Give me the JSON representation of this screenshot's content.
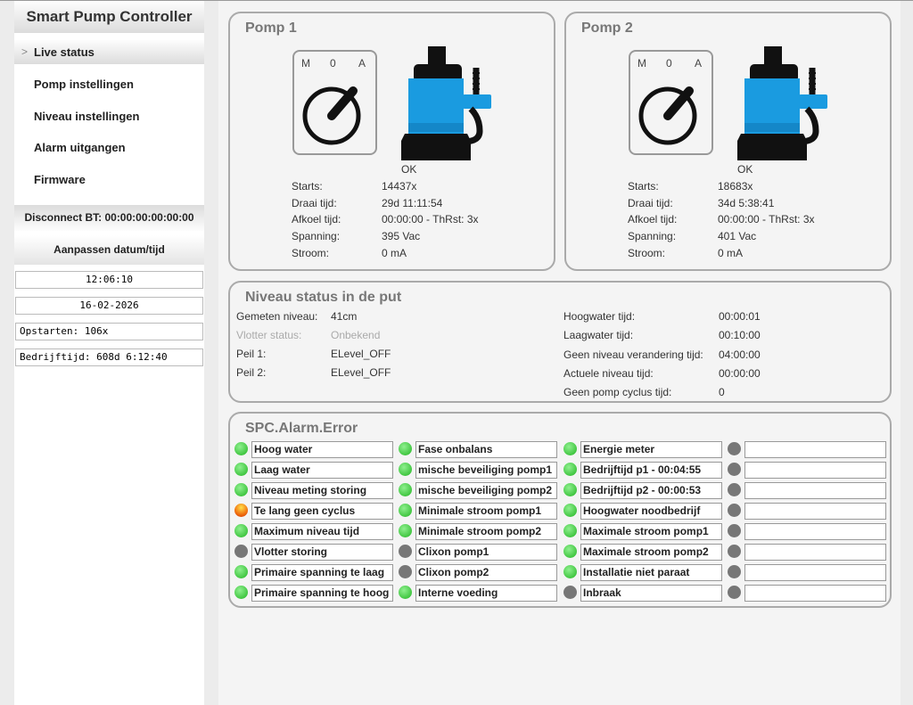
{
  "sidebar": {
    "title": "Smart Pump Controller",
    "menu": [
      {
        "label": "Live status",
        "selected": true
      },
      {
        "label": "Pomp instellingen"
      },
      {
        "label": "Niveau instellingen"
      },
      {
        "label": "Alarm uitgangen"
      },
      {
        "label": "Firmware"
      }
    ],
    "disconnect": "Disconnect BT: 00:00:00:00:00:00",
    "datetime_header": "Aanpassen datum/tijd",
    "time": "12:06:10",
    "date": "16-02-2026",
    "startups": "Opstarten: 106x",
    "runtime": "Bedrijftijd: 608d 6:12:40"
  },
  "pumps": [
    {
      "title": "Pomp 1",
      "switch_labels": [
        "M",
        "0",
        "A"
      ],
      "status": "OK",
      "rows": [
        {
          "label": "Starts:",
          "value": "14437x"
        },
        {
          "label": "Draai tijd:",
          "value": "29d 11:11:54"
        },
        {
          "label": "Afkoel tijd:",
          "value": "00:00:00 - ThRst: 3x"
        },
        {
          "label": "Spanning:",
          "value": "395 Vac"
        },
        {
          "label": "Stroom:",
          "value": "0 mA"
        }
      ]
    },
    {
      "title": "Pomp 2",
      "switch_labels": [
        "M",
        "0",
        "A"
      ],
      "status": "OK",
      "rows": [
        {
          "label": "Starts:",
          "value": "18683x"
        },
        {
          "label": "Draai tijd:",
          "value": "34d 5:38:41"
        },
        {
          "label": "Afkoel tijd:",
          "value": "00:00:00 - ThRst: 3x"
        },
        {
          "label": "Spanning:",
          "value": "401 Vac"
        },
        {
          "label": "Stroom:",
          "value": "0 mA"
        }
      ]
    }
  ],
  "level": {
    "title": "Niveau status in de put",
    "left": [
      {
        "label": "Gemeten niveau:",
        "value": "41cm"
      },
      {
        "label": "Vlotter status:",
        "value": "Onbekend",
        "muted": true
      },
      {
        "label": "Peil 1:",
        "value": "ELevel_OFF"
      },
      {
        "label": "Peil 2:",
        "value": "ELevel_OFF"
      }
    ],
    "right": [
      {
        "label": "Hoogwater tijd:",
        "value": "00:00:01"
      },
      {
        "label": "Laagwater tijd:",
        "value": "00:10:00"
      },
      {
        "label": "Geen niveau verandering tijd:",
        "value": "04:00:00"
      },
      {
        "label": "Actuele niveau tijd:",
        "value": "00:00:00"
      },
      {
        "label": "Geen pomp cyclus tijd:",
        "value": "0"
      }
    ]
  },
  "alarms": {
    "title": "SPC.Alarm.Error",
    "columns": [
      [
        {
          "label": "Hoog water",
          "led": "green"
        },
        {
          "label": "Laag water",
          "led": "green"
        },
        {
          "label": "Niveau meting storing",
          "led": "green"
        },
        {
          "label": "Te lang geen cyclus",
          "led": "orange"
        },
        {
          "label": "Maximum niveau tijd",
          "led": "green"
        },
        {
          "label": "Vlotter storing",
          "led": "gray"
        },
        {
          "label": "Primaire spanning te laag",
          "led": "green"
        },
        {
          "label": "Primaire spanning te hoog",
          "led": "green"
        }
      ],
      [
        {
          "label": "Fase onbalans",
          "led": "green"
        },
        {
          "label": "mische beveiliging pomp1",
          "led": "green"
        },
        {
          "label": "mische beveiliging pomp2",
          "led": "green"
        },
        {
          "label": "Minimale stroom pomp1",
          "led": "green"
        },
        {
          "label": "Minimale stroom pomp2",
          "led": "green"
        },
        {
          "label": "Clixon pomp1",
          "led": "gray"
        },
        {
          "label": "Clixon pomp2",
          "led": "gray"
        },
        {
          "label": "Interne voeding",
          "led": "green"
        }
      ],
      [
        {
          "label": "Energie meter",
          "led": "green"
        },
        {
          "label": "Bedrijftijd p1 - 00:04:55",
          "led": "green"
        },
        {
          "label": "Bedrijftijd p2 - 00:00:53",
          "led": "green"
        },
        {
          "label": "Hoogwater noodbedrijf",
          "led": "green"
        },
        {
          "label": "Maximale stroom pomp1",
          "led": "green"
        },
        {
          "label": "Maximale stroom pomp2",
          "led": "green"
        },
        {
          "label": "Installatie niet paraat",
          "led": "green"
        },
        {
          "label": "Inbraak",
          "led": "gray"
        }
      ],
      [
        {
          "led": "gray"
        },
        {
          "led": "gray"
        },
        {
          "led": "gray"
        },
        {
          "led": "gray"
        },
        {
          "led": "gray"
        },
        {
          "led": "gray"
        },
        {
          "led": "gray"
        },
        {
          "led": "gray"
        }
      ]
    ]
  }
}
